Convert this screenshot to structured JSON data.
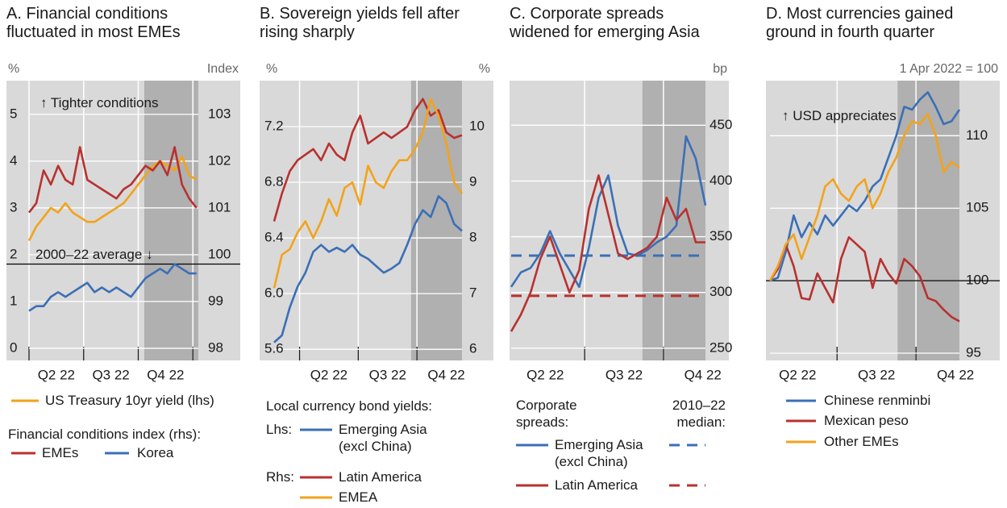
{
  "chart_data": [
    {
      "type": "line",
      "title": "A. Financial conditions fluctuated in most EMEs",
      "y_unit": "%",
      "y2_unit": "Index",
      "x": [
        3.0,
        3.4,
        3.8,
        4.2,
        4.6,
        5.0,
        5.4,
        5.8,
        6.2,
        6.6,
        7.0,
        7.4,
        7.8,
        8.2,
        8.6,
        9.0,
        9.4,
        9.8,
        10.2,
        10.6,
        11.0,
        11.4,
        11.8,
        12.2
      ],
      "xlim": [
        3,
        12.3
      ],
      "xticks": [
        {
          "value": 4.5,
          "label": "Q2 22"
        },
        {
          "value": 7.5,
          "label": "Q3 22"
        },
        {
          "value": 10.5,
          "label": "Q4 22"
        }
      ],
      "xminor": [
        3,
        6,
        9,
        12
      ],
      "shaded": [
        9.33,
        12.3
      ],
      "ylim": [
        -0.26,
        5.72
      ],
      "yticks": [
        0,
        1,
        2,
        3,
        4,
        5
      ],
      "y2lim": [
        97.74,
        103.72
      ],
      "y2ticks": [
        98,
        99,
        100,
        101,
        102,
        103
      ],
      "average": 99.8,
      "annotations": [
        "↑ Tighter conditions",
        "2000–22 average ↓"
      ],
      "legend_title": "Financial conditions index (rhs):",
      "series": [
        {
          "name": "US Treasury 10yr yield (lhs)",
          "color": "#f2a31b",
          "values": [
            2.3,
            2.6,
            2.8,
            3.0,
            2.9,
            3.1,
            2.9,
            2.8,
            2.7,
            2.7,
            2.8,
            2.9,
            3.0,
            3.1,
            3.3,
            3.5,
            3.7,
            3.9,
            4.0,
            3.9,
            3.8,
            4.1,
            3.7,
            3.6
          ]
        },
        {
          "name": "EMEs",
          "color": "#b8312f",
          "axis": "y2",
          "values": [
            100.9,
            101.1,
            101.8,
            101.5,
            101.9,
            101.6,
            101.5,
            102.3,
            101.6,
            101.5,
            101.4,
            101.3,
            101.2,
            101.4,
            101.5,
            101.7,
            101.9,
            101.8,
            102.0,
            101.7,
            102.3,
            101.5,
            101.2,
            101.0
          ]
        },
        {
          "name": "Korea",
          "color": "#3b6fb6",
          "axis": "y2",
          "values": [
            98.8,
            98.9,
            98.9,
            99.1,
            99.2,
            99.1,
            99.2,
            99.3,
            99.4,
            99.2,
            99.3,
            99.2,
            99.3,
            99.2,
            99.1,
            99.3,
            99.5,
            99.6,
            99.7,
            99.6,
            99.8,
            99.7,
            99.6,
            99.6
          ]
        }
      ]
    },
    {
      "type": "line",
      "title": "B. Sovereign yields fell after rising sharply",
      "y_unit": "%",
      "y2_unit": "%",
      "x": [
        1.7,
        2.1,
        2.5,
        2.9,
        3.3,
        3.7,
        4.1,
        4.5,
        4.9,
        5.3,
        5.7,
        6.1,
        6.5,
        6.9,
        7.3,
        7.7,
        8.1,
        8.5,
        8.9,
        9.3,
        9.7,
        10.1,
        10.5,
        10.9,
        11.3
      ],
      "xlim": [
        1.7,
        11.3
      ],
      "xticks": [
        {
          "value": 4.5,
          "label": "Q2 22"
        },
        {
          "value": 7.5,
          "label": "Q3 22"
        },
        {
          "value": 10.5,
          "label": "Q4 22"
        }
      ],
      "xminor": [
        3,
        6,
        9
      ],
      "shaded": [
        8.7,
        11.3
      ],
      "ylim": [
        5.52,
        7.53
      ],
      "yticks": [
        5.6,
        {
          "value": 6,
          "label": "6.0"
        },
        6.4,
        6.8,
        7.2
      ],
      "y2lim": [
        5.8,
        10.83
      ],
      "y2ticks": [
        6,
        7,
        8,
        9,
        10
      ],
      "legend_title": "Local currency bond yields:",
      "lhs_label": "Lhs:",
      "rhs_label": "Rhs:",
      "series": [
        {
          "name": "Emerging Asia (excl China)",
          "color": "#3b6fb6",
          "values": [
            5.65,
            5.7,
            5.9,
            6.05,
            6.15,
            6.3,
            6.35,
            6.3,
            6.33,
            6.3,
            6.35,
            6.28,
            6.25,
            6.2,
            6.15,
            6.18,
            6.22,
            6.35,
            6.5,
            6.6,
            6.55,
            6.7,
            6.65,
            6.5,
            6.45
          ]
        },
        {
          "name": "Latin America",
          "color": "#b8312f",
          "axis": "y2",
          "values": [
            8.3,
            8.8,
            9.2,
            9.4,
            9.5,
            9.6,
            9.4,
            9.7,
            9.5,
            9.4,
            9.9,
            10.2,
            9.7,
            9.8,
            9.9,
            9.8,
            9.9,
            10.0,
            10.3,
            10.5,
            10.2,
            10.3,
            9.9,
            9.8,
            9.85
          ]
        },
        {
          "name": "EMEA",
          "color": "#f2a31b",
          "axis": "y2",
          "values": [
            7.1,
            7.7,
            7.8,
            8.1,
            8.3,
            8.0,
            8.3,
            8.7,
            8.4,
            8.9,
            9.0,
            8.6,
            9.3,
            9.0,
            8.9,
            9.2,
            9.4,
            9.4,
            9.6,
            9.9,
            10.5,
            10.2,
            9.7,
            9.0,
            8.8
          ]
        }
      ]
    },
    {
      "type": "line",
      "title": "C. Corporate spreads widened for emerging Asia",
      "y_unit": "bp",
      "y_side": "right",
      "x": [
        3.2,
        3.57,
        3.94,
        4.31,
        4.68,
        5.05,
        5.42,
        5.79,
        6.16,
        6.53,
        6.9,
        7.27,
        7.64,
        8.01,
        8.38,
        8.75,
        9.12,
        9.49,
        9.86,
        10.23,
        10.6
      ],
      "xlim": [
        3.2,
        10.6
      ],
      "xticks": [
        {
          "value": 4.5,
          "label": "Q2 22"
        },
        {
          "value": 7.5,
          "label": "Q3 22"
        },
        {
          "value": 10.5,
          "label": "Q4 22"
        }
      ],
      "xminor": [
        6,
        9
      ],
      "shaded": [
        8.2,
        10.6
      ],
      "ylim": [
        239,
        490
      ],
      "yticks": [
        250,
        300,
        350,
        400,
        450
      ],
      "legend_title": "Corporate spreads:",
      "median_label": "2010–22 median:",
      "series": [
        {
          "name": "Emerging Asia (excl China)",
          "color": "#3b6fb6",
          "median": 333,
          "values": [
            305,
            318,
            322,
            335,
            355,
            335,
            320,
            305,
            340,
            385,
            405,
            360,
            335,
            333,
            338,
            345,
            350,
            360,
            440,
            420,
            378
          ]
        },
        {
          "name": "Latin America",
          "color": "#b8312f",
          "median": 297,
          "values": [
            265,
            280,
            300,
            330,
            350,
            325,
            300,
            320,
            375,
            405,
            370,
            335,
            330,
            335,
            340,
            350,
            385,
            365,
            375,
            345,
            345
          ]
        }
      ]
    },
    {
      "type": "line",
      "title": "D. Most currencies gained ground in fourth quarter",
      "y_unit": "1 Apr 2022 = 100",
      "y_side": "right",
      "x": [
        3.45,
        3.75,
        4.05,
        4.35,
        4.65,
        4.95,
        5.25,
        5.55,
        5.85,
        6.15,
        6.45,
        6.75,
        7.05,
        7.35,
        7.65,
        7.95,
        8.25,
        8.55,
        8.85,
        9.15,
        9.45,
        9.75,
        10.05,
        10.35,
        10.65
      ],
      "xlim": [
        3.45,
        10.65
      ],
      "xticks": [
        {
          "value": 4.5,
          "label": "Q2 22"
        },
        {
          "value": 7.5,
          "label": "Q3 22"
        },
        {
          "value": 10.5,
          "label": "Q4 22"
        }
      ],
      "xminor": [
        6,
        9
      ],
      "shaded": [
        8.3,
        10.65
      ],
      "ylim": [
        94.5,
        113.8
      ],
      "yticks": [
        95,
        100,
        105,
        110
      ],
      "reference_line": 100,
      "annotations": [
        "↑ USD appreciates"
      ],
      "series": [
        {
          "name": "Chinese renminbi",
          "color": "#3b6fb6",
          "values": [
            100,
            100.2,
            102,
            104.5,
            103,
            104,
            103.2,
            104.5,
            103.8,
            104.5,
            105.2,
            104.8,
            105.5,
            106.5,
            107,
            108.5,
            110,
            112,
            111.8,
            112.5,
            113,
            112,
            110.8,
            111,
            111.8
          ]
        },
        {
          "name": "Mexican peso",
          "color": "#b8312f",
          "values": [
            100,
            100.8,
            102.5,
            101,
            98.8,
            98.7,
            100.5,
            99.5,
            98.5,
            101.5,
            103,
            102.5,
            102,
            99.5,
            101.5,
            100.5,
            99.8,
            101.5,
            101,
            100.3,
            98.8,
            98.6,
            98,
            97.5,
            97.2
          ]
        },
        {
          "name": "Other EMEs",
          "color": "#f2a31b",
          "values": [
            100,
            101,
            102.5,
            103.2,
            101.5,
            103,
            104.5,
            106.5,
            107,
            106,
            105.5,
            106.5,
            107,
            105,
            106,
            107.5,
            108.5,
            110,
            111,
            110.8,
            111.5,
            110,
            107.5,
            108.2,
            107.8
          ]
        }
      ]
    }
  ]
}
